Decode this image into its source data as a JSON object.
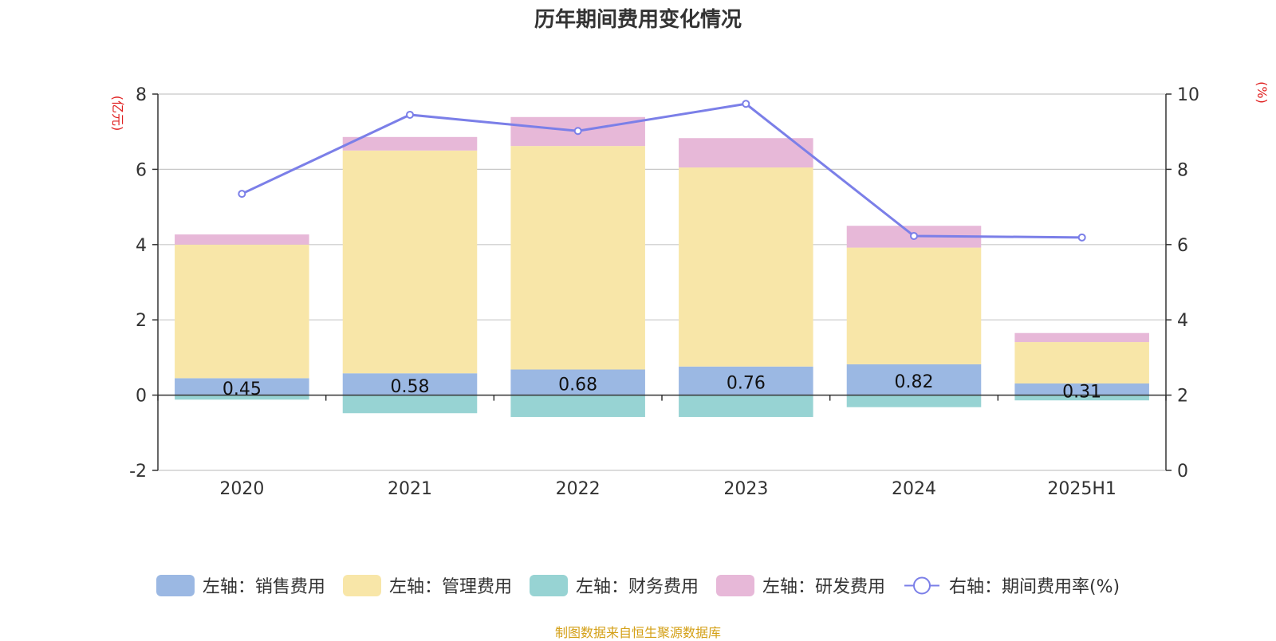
{
  "title": "历年期间费用变化情况",
  "source": "制图数据来自恒生聚源数据库",
  "chart_data": {
    "type": "bar",
    "title": "历年期间费用变化情况",
    "categories": [
      "2020",
      "2021",
      "2022",
      "2023",
      "2024",
      "2025H1"
    ],
    "left_axis": {
      "unit": "(亿元)",
      "min": -2,
      "max": 8,
      "ticks": [
        -2,
        0,
        2,
        4,
        6,
        8
      ]
    },
    "right_axis": {
      "unit": "(%)",
      "min": 0,
      "max": 10,
      "ticks": [
        0,
        2,
        4,
        6,
        8,
        10
      ]
    },
    "grid": true,
    "legend_position": "bottom",
    "series": [
      {
        "name": "左轴：销售费用",
        "type": "bar",
        "axis": "left",
        "color": "#9bb8e3",
        "values": [
          0.45,
          0.58,
          0.68,
          0.76,
          0.82,
          0.31
        ],
        "show_labels": true
      },
      {
        "name": "左轴：管理费用",
        "type": "bar",
        "axis": "left",
        "color": "#f8e6a8",
        "values": [
          3.55,
          5.92,
          5.94,
          5.29,
          3.1,
          1.1
        ]
      },
      {
        "name": "左轴：财务费用",
        "type": "bar",
        "axis": "left",
        "color": "#97d3d3",
        "values": [
          -0.12,
          -0.48,
          -0.58,
          -0.58,
          -0.32,
          -0.14
        ]
      },
      {
        "name": "左轴：研发费用",
        "type": "bar",
        "axis": "left",
        "color": "#e7b8d8",
        "values": [
          0.27,
          0.36,
          0.77,
          0.78,
          0.58,
          0.24
        ]
      },
      {
        "name": "右轴：期间费用率(%)",
        "type": "line",
        "axis": "right",
        "color": "#7b7fe8",
        "values": [
          7.35,
          9.45,
          9.02,
          9.74,
          6.23,
          6.19
        ]
      }
    ]
  }
}
